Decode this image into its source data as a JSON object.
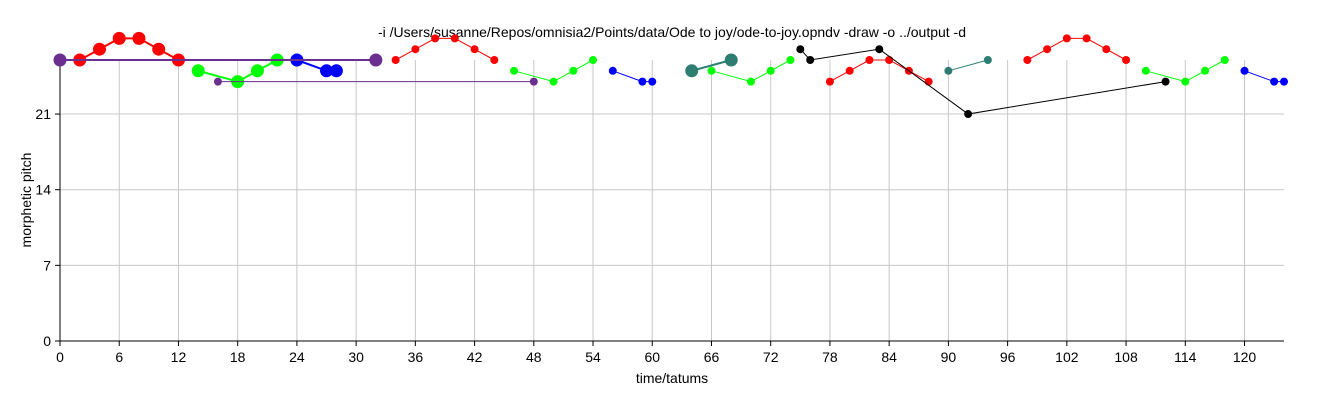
{
  "chart_data": {
    "type": "scatter",
    "title": "-i /Users/susanne/Repos/omnisia2/Points/data/Ode to joy/ode-to-joy.opndv -draw -o ../output -d",
    "xlabel": "time/tatums",
    "ylabel": "morphetic pitch",
    "xlim": [
      0,
      124
    ],
    "ylim": [
      0,
      26
    ],
    "xticks": [
      0,
      6,
      12,
      18,
      24,
      30,
      36,
      42,
      48,
      54,
      60,
      66,
      72,
      78,
      84,
      90,
      96,
      102,
      108,
      114,
      120
    ],
    "yticks": [
      0,
      7,
      14,
      21
    ],
    "grid": true,
    "series": [
      {
        "color": "#ff0000",
        "size": "large",
        "points": [
          [
            2,
            26
          ],
          [
            4,
            27
          ],
          [
            6,
            28
          ],
          [
            8,
            28
          ],
          [
            10,
            27
          ],
          [
            12,
            26
          ]
        ]
      },
      {
        "color": "#00ff00",
        "size": "large",
        "points": [
          [
            14,
            25
          ],
          [
            18,
            24
          ],
          [
            20,
            25
          ],
          [
            22,
            26
          ]
        ]
      },
      {
        "color": "#0000ff",
        "size": "large",
        "points": [
          [
            24,
            26
          ],
          [
            27,
            25
          ],
          [
            28,
            25
          ]
        ]
      },
      {
        "color": "#ff0000",
        "size": "small",
        "points": [
          [
            34,
            26
          ],
          [
            36,
            27
          ],
          [
            38,
            28
          ],
          [
            40,
            28
          ],
          [
            42,
            27
          ],
          [
            44,
            26
          ]
        ]
      },
      {
        "color": "#00ff00",
        "size": "small",
        "points": [
          [
            46,
            25
          ],
          [
            50,
            24
          ],
          [
            52,
            25
          ],
          [
            54,
            26
          ]
        ]
      },
      {
        "color": "#0000ff",
        "size": "small",
        "points": [
          [
            56,
            25
          ],
          [
            59,
            24
          ],
          [
            60,
            24
          ]
        ]
      },
      {
        "color": "#00ff00",
        "size": "small",
        "points": [
          [
            66,
            25
          ],
          [
            70,
            24
          ],
          [
            72,
            25
          ],
          [
            74,
            26
          ]
        ]
      },
      {
        "color": "#ff0000",
        "size": "small",
        "points": [
          [
            78,
            24
          ],
          [
            80,
            25
          ],
          [
            82,
            26
          ],
          [
            84,
            26
          ],
          [
            86,
            25
          ],
          [
            88,
            24
          ]
        ]
      },
      {
        "color": "#ff0000",
        "size": "small",
        "points": [
          [
            98,
            26
          ],
          [
            100,
            27
          ],
          [
            102,
            28
          ],
          [
            104,
            28
          ],
          [
            106,
            27
          ],
          [
            108,
            26
          ]
        ]
      },
      {
        "color": "#00ff00",
        "size": "small",
        "points": [
          [
            110,
            25
          ],
          [
            114,
            24
          ],
          [
            116,
            25
          ],
          [
            118,
            26
          ]
        ]
      },
      {
        "color": "#0000ff",
        "size": "small",
        "points": [
          [
            120,
            25
          ],
          [
            123,
            24
          ],
          [
            124,
            24
          ]
        ]
      },
      {
        "color": "#2e7d72",
        "size": "large",
        "points": [
          [
            64,
            25
          ],
          [
            68,
            26
          ]
        ]
      },
      {
        "color": "#2e7d72",
        "size": "small",
        "points": [
          [
            90,
            25
          ],
          [
            94,
            26
          ]
        ]
      },
      {
        "color": "#6b2f8f",
        "size": "large",
        "points": [
          [
            0,
            26
          ],
          [
            32,
            26
          ]
        ]
      },
      {
        "color": "#6b2f8f",
        "size": "small",
        "points": [
          [
            16,
            24
          ],
          [
            48,
            24
          ]
        ]
      },
      {
        "color": "#000000",
        "size": "small",
        "points": [
          [
            75,
            27
          ],
          [
            76,
            26
          ],
          [
            83,
            27
          ],
          [
            92,
            21
          ],
          [
            112,
            24
          ]
        ]
      }
    ]
  }
}
